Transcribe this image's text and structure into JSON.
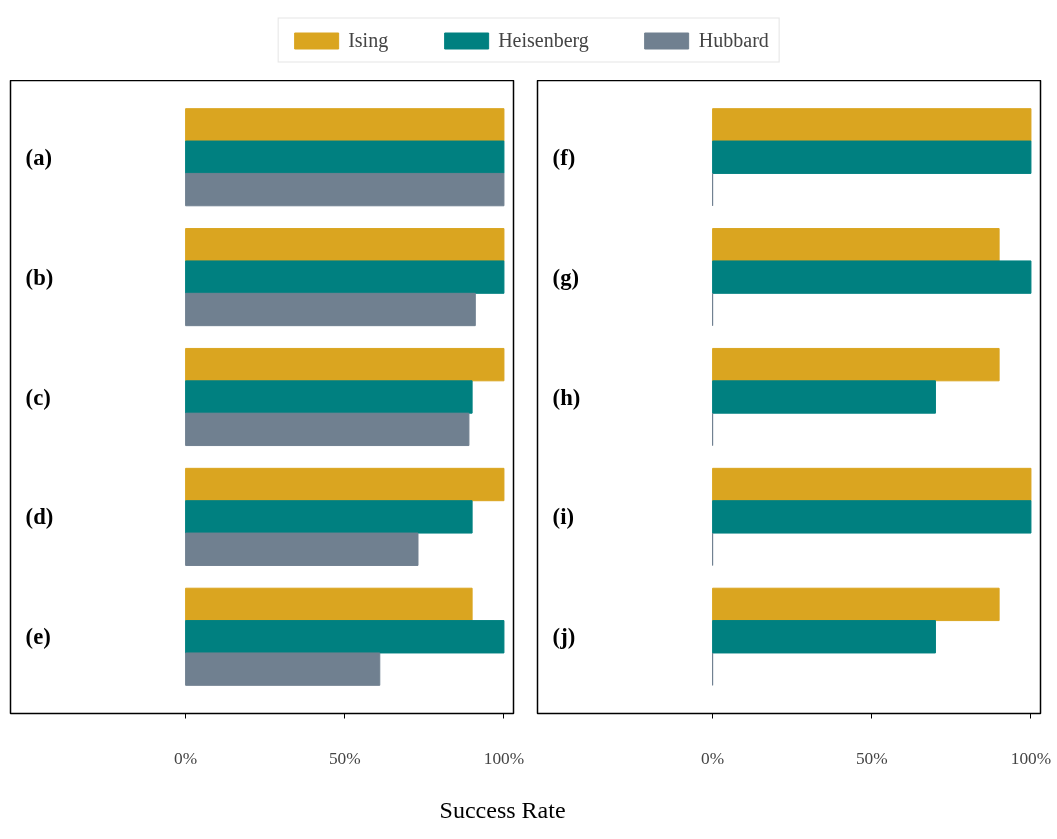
{
  "chart_data": [
    {
      "type": "bar",
      "orientation": "horizontal",
      "categories": [
        "(a)",
        "(b)",
        "(c)",
        "(d)",
        "(e)"
      ],
      "series": [
        {
          "name": "Ising",
          "color": "#daa520",
          "values": [
            100,
            100,
            100,
            100,
            90
          ]
        },
        {
          "name": "Heisenberg",
          "color": "#008080",
          "values": [
            100,
            100,
            90,
            90,
            100
          ]
        },
        {
          "name": "Hubbard",
          "color": "#708090",
          "values": [
            100,
            91,
            89,
            73,
            61
          ]
        }
      ],
      "xlim": [
        -55,
        103
      ],
      "xticks": [
        {
          "value": 0,
          "label": "0%"
        },
        {
          "value": 50,
          "label": "50%"
        },
        {
          "value": 100,
          "label": "100%"
        }
      ],
      "xlabel": "Success Rate",
      "legend": "top",
      "grid": false
    },
    {
      "type": "bar",
      "orientation": "horizontal",
      "categories": [
        "(f)",
        "(g)",
        "(h)",
        "(i)",
        "(j)"
      ],
      "series": [
        {
          "color": "#daa520",
          "values": [
            100,
            90,
            90,
            100,
            90
          ]
        },
        {
          "color": "#008080",
          "values": [
            100,
            100,
            70,
            100,
            70
          ]
        },
        {
          "color": "#708090",
          "values": [
            0,
            0,
            0,
            0,
            0
          ]
        }
      ],
      "xlim": [
        -55,
        103
      ],
      "xticks": [
        {
          "value": 0,
          "label": "0%"
        },
        {
          "value": 50,
          "label": "50%"
        },
        {
          "value": 100,
          "label": "100%"
        }
      ],
      "grid": false
    }
  ]
}
